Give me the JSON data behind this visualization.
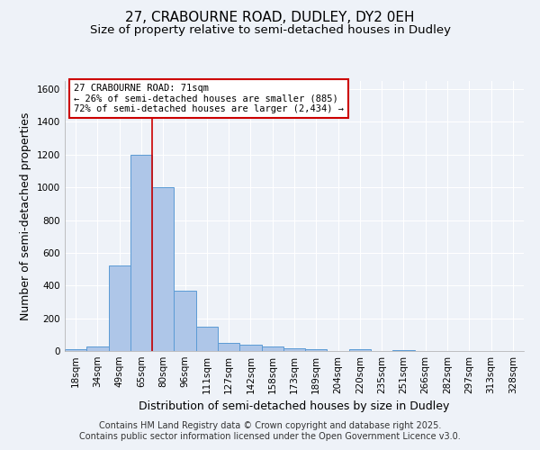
{
  "title": "27, CRABOURNE ROAD, DUDLEY, DY2 0EH",
  "subtitle": "Size of property relative to semi-detached houses in Dudley",
  "xlabel": "Distribution of semi-detached houses by size in Dudley",
  "ylabel": "Number of semi-detached properties",
  "footnote1": "Contains HM Land Registry data © Crown copyright and database right 2025.",
  "footnote2": "Contains public sector information licensed under the Open Government Licence v3.0.",
  "categories": [
    "18sqm",
    "34sqm",
    "49sqm",
    "65sqm",
    "80sqm",
    "96sqm",
    "111sqm",
    "127sqm",
    "142sqm",
    "158sqm",
    "173sqm",
    "189sqm",
    "204sqm",
    "220sqm",
    "235sqm",
    "251sqm",
    "266sqm",
    "282sqm",
    "297sqm",
    "313sqm",
    "328sqm"
  ],
  "values": [
    10,
    30,
    520,
    1200,
    1000,
    370,
    150,
    50,
    40,
    25,
    15,
    10,
    0,
    10,
    0,
    5,
    0,
    0,
    0,
    0,
    0
  ],
  "bar_color": "#aec6e8",
  "bar_edge_color": "#5b9bd5",
  "vline_x": 3.5,
  "vline_color": "#cc0000",
  "annotation_text": "27 CRABOURNE ROAD: 71sqm\n← 26% of semi-detached houses are smaller (885)\n72% of semi-detached houses are larger (2,434) →",
  "annotation_box_color": "white",
  "annotation_box_edge_color": "#cc0000",
  "ylim": [
    0,
    1650
  ],
  "yticks": [
    0,
    200,
    400,
    600,
    800,
    1000,
    1200,
    1400,
    1600
  ],
  "background_color": "#eef2f8",
  "grid_color": "#ffffff",
  "title_fontsize": 11,
  "subtitle_fontsize": 9.5,
  "axis_label_fontsize": 9,
  "tick_fontsize": 7.5,
  "annotation_fontsize": 7.5,
  "footnote_fontsize": 7
}
